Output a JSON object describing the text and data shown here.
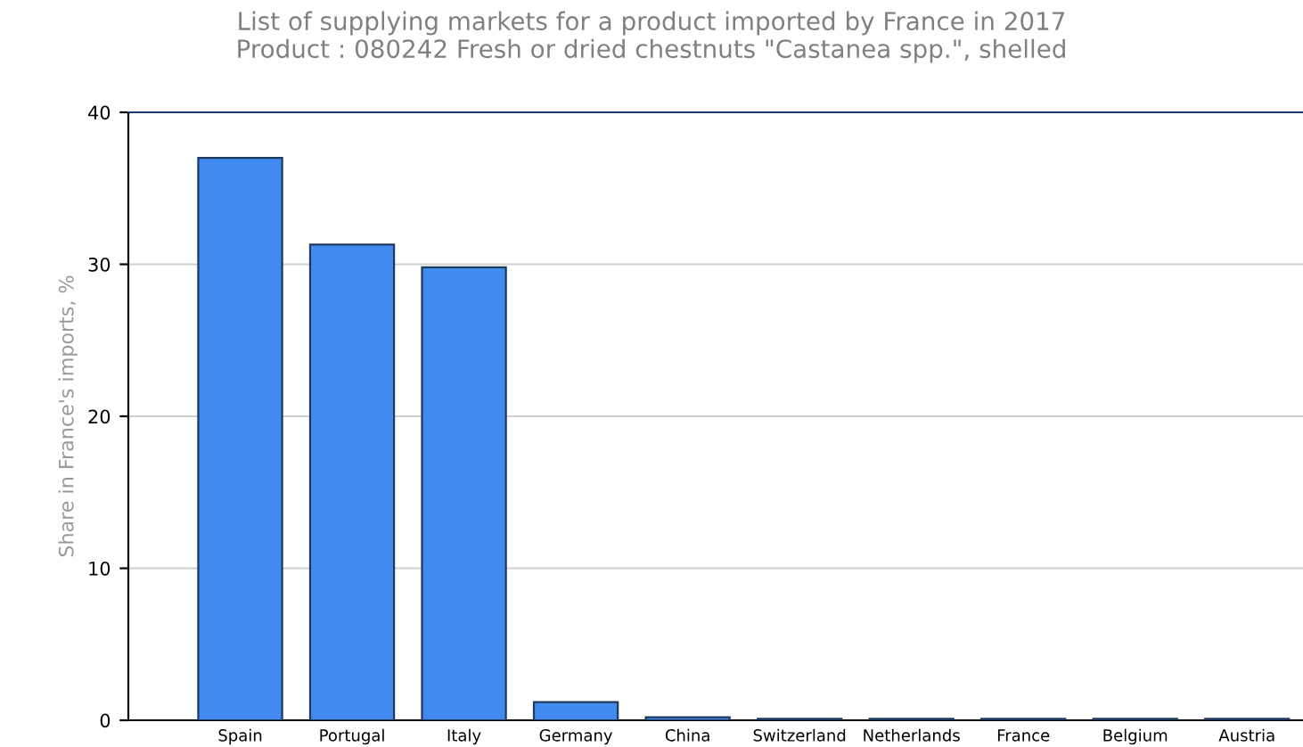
{
  "chart_data": {
    "type": "bar",
    "title": "List of supplying markets for a product imported by France in 2017\nProduct : 080242 Fresh or dried chestnuts \"Castanea spp.\", shelled",
    "ylabel": "Share in France's imports, %",
    "categories": [
      "Spain",
      "Portugal",
      "Italy",
      "Germany",
      "China",
      "Switzerland",
      "Netherlands",
      "France",
      "Belgium",
      "Austria"
    ],
    "values": [
      37.0,
      31.3,
      29.8,
      1.2,
      0.2,
      0.1,
      0.1,
      0.1,
      0.1,
      0.1
    ],
    "color": "#418af0",
    "ylim": [
      0,
      40
    ],
    "yticks": [
      0,
      10,
      20,
      30,
      40
    ],
    "grid": "y"
  }
}
